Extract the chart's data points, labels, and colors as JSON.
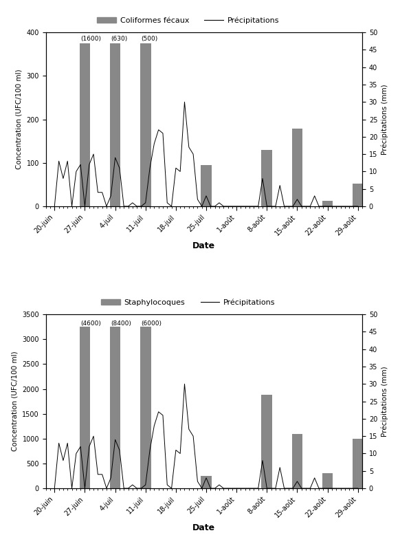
{
  "chart1": {
    "legend_bar": "Coliformes fécaux",
    "legend_line": "Précipitations",
    "ylabel_left": "Concentration (UFC/100 ml)",
    "ylabel_right": "Précipitations (mm)",
    "ylim_left": [
      0,
      400
    ],
    "ylim_right": [
      0,
      50
    ],
    "yticks_left": [
      0,
      100,
      200,
      300,
      400
    ],
    "yticks_right": [
      0,
      5,
      10,
      15,
      20,
      25,
      30,
      35,
      40,
      45,
      50
    ],
    "xlabel": "Date",
    "x_labels": [
      "20-juin",
      "27-juin",
      "4-juil",
      "11-juil",
      "18-juil",
      "25-juil",
      "1-août",
      "8-août",
      "15-août",
      "22-août",
      "29-août"
    ],
    "bar_positions": [
      0,
      7,
      14,
      21,
      28,
      35,
      42,
      49,
      56,
      63,
      70
    ],
    "bar_values": [
      0,
      375,
      375,
      375,
      0,
      95,
      0,
      130,
      178,
      12,
      52
    ],
    "bar_labels": [
      "",
      "(1600)",
      "(630)",
      "(500)",
      "",
      "",
      "",
      "",
      "",
      "",
      ""
    ],
    "bar_color": "#888888",
    "bar_width": 2.5,
    "precip_mm": [
      0,
      13,
      8,
      13,
      0,
      10,
      12,
      0,
      12,
      15,
      4,
      4,
      0,
      3,
      14,
      11,
      0,
      0,
      1,
      0,
      0,
      1,
      11,
      18,
      22,
      21,
      1,
      0,
      11,
      10,
      30,
      17,
      15,
      2,
      0,
      3,
      0,
      0,
      1,
      0,
      0,
      0,
      0,
      0,
      0,
      0,
      0,
      0,
      8,
      0,
      0,
      0,
      6,
      0,
      0,
      0,
      2,
      0,
      0,
      0,
      3,
      0,
      0,
      0,
      0,
      0,
      0,
      0,
      0,
      0,
      0
    ],
    "n_days": 71
  },
  "chart2": {
    "legend_bar": "Staphylocoques",
    "legend_line": "Précipitations",
    "ylabel_left": "Concentration (UFC/100 ml)",
    "ylabel_right": "Précipitations (mm)",
    "ylim_left": [
      0,
      3500
    ],
    "ylim_right": [
      0,
      50
    ],
    "yticks_left": [
      0,
      500,
      1000,
      1500,
      2000,
      2500,
      3000,
      3500
    ],
    "yticks_right": [
      0,
      5,
      10,
      15,
      20,
      25,
      30,
      35,
      40,
      45,
      50
    ],
    "xlabel": "Date",
    "x_labels": [
      "20-juin",
      "27-juin",
      "4-juil",
      "11-juil",
      "18-juil",
      "25-juil",
      "1-août",
      "8-août",
      "15-août",
      "22-août",
      "29-août"
    ],
    "bar_positions": [
      0,
      7,
      14,
      21,
      28,
      35,
      42,
      49,
      56,
      63,
      70
    ],
    "bar_values": [
      0,
      3250,
      3250,
      3250,
      0,
      250,
      0,
      1880,
      1100,
      300,
      1000
    ],
    "bar_labels": [
      "",
      "(4600)",
      "(8400)",
      "(6000)",
      "",
      "",
      "",
      "",
      "",
      "",
      ""
    ],
    "bar_color": "#888888",
    "bar_width": 2.5,
    "precip_mm": [
      0,
      13,
      8,
      13,
      0,
      10,
      12,
      0,
      12,
      15,
      4,
      4,
      0,
      3,
      14,
      11,
      0,
      0,
      1,
      0,
      0,
      1,
      11,
      18,
      22,
      21,
      1,
      0,
      11,
      10,
      30,
      17,
      15,
      2,
      0,
      3,
      0,
      0,
      1,
      0,
      0,
      0,
      0,
      0,
      0,
      0,
      0,
      0,
      8,
      0,
      0,
      0,
      6,
      0,
      0,
      0,
      2,
      0,
      0,
      0,
      3,
      0,
      0,
      0,
      0,
      0,
      0,
      0,
      0,
      0,
      0
    ],
    "n_days": 71
  },
  "background_color": "#ffffff"
}
